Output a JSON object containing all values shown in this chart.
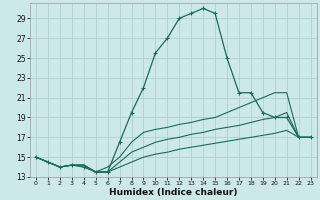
{
  "xlabel": "Humidex (Indice chaleur)",
  "background_color": "#cce8e8",
  "grid_color": "#aacccc",
  "line_color": "#1a6b5a",
  "xlim": [
    -0.5,
    23.5
  ],
  "ylim": [
    13,
    30.5
  ],
  "xticks": [
    0,
    1,
    2,
    3,
    4,
    5,
    6,
    7,
    8,
    9,
    10,
    11,
    12,
    13,
    14,
    15,
    16,
    17,
    18,
    19,
    20,
    21,
    22,
    23
  ],
  "yticks": [
    13,
    15,
    17,
    19,
    21,
    23,
    25,
    27,
    29
  ],
  "series": [
    {
      "x": [
        0,
        1,
        2,
        3,
        4,
        5,
        6,
        7,
        8,
        9,
        10,
        11,
        12,
        13,
        14,
        15,
        16,
        17,
        18,
        19,
        20,
        21,
        22,
        23
      ],
      "y": [
        15,
        14.5,
        14,
        14.2,
        14,
        13.5,
        13.5,
        16.5,
        19.5,
        22,
        25.5,
        27,
        29,
        29.5,
        30,
        29.5,
        25,
        21.5,
        21.5,
        19.5,
        19,
        19,
        17,
        17
      ],
      "marker": true
    },
    {
      "x": [
        0,
        1,
        2,
        3,
        4,
        5,
        6,
        7,
        8,
        9,
        10,
        11,
        12,
        13,
        14,
        15,
        16,
        17,
        18,
        19,
        20,
        21,
        22,
        23
      ],
      "y": [
        15,
        14.5,
        14,
        14.2,
        14.2,
        13.5,
        14,
        15,
        16.5,
        17.5,
        17.8,
        18,
        18.3,
        18.5,
        18.8,
        19,
        19.5,
        20,
        20.5,
        21,
        21.5,
        21.5,
        17,
        17
      ],
      "marker": false
    },
    {
      "x": [
        0,
        1,
        2,
        3,
        4,
        5,
        6,
        7,
        8,
        9,
        10,
        11,
        12,
        13,
        14,
        15,
        16,
        17,
        18,
        19,
        20,
        21,
        22,
        23
      ],
      "y": [
        15,
        14.5,
        14,
        14.2,
        14.2,
        13.5,
        13.5,
        14.5,
        15.5,
        16,
        16.5,
        16.8,
        17,
        17.3,
        17.5,
        17.8,
        18,
        18.2,
        18.5,
        18.8,
        19,
        19.5,
        17,
        17
      ],
      "marker": false
    },
    {
      "x": [
        0,
        1,
        2,
        3,
        4,
        5,
        6,
        7,
        8,
        9,
        10,
        11,
        12,
        13,
        14,
        15,
        16,
        17,
        18,
        19,
        20,
        21,
        22,
        23
      ],
      "y": [
        15,
        14.5,
        14,
        14.2,
        14.2,
        13.5,
        13.5,
        14,
        14.5,
        15,
        15.3,
        15.5,
        15.8,
        16,
        16.2,
        16.4,
        16.6,
        16.8,
        17,
        17.2,
        17.4,
        17.7,
        17,
        17
      ],
      "marker": false
    }
  ]
}
